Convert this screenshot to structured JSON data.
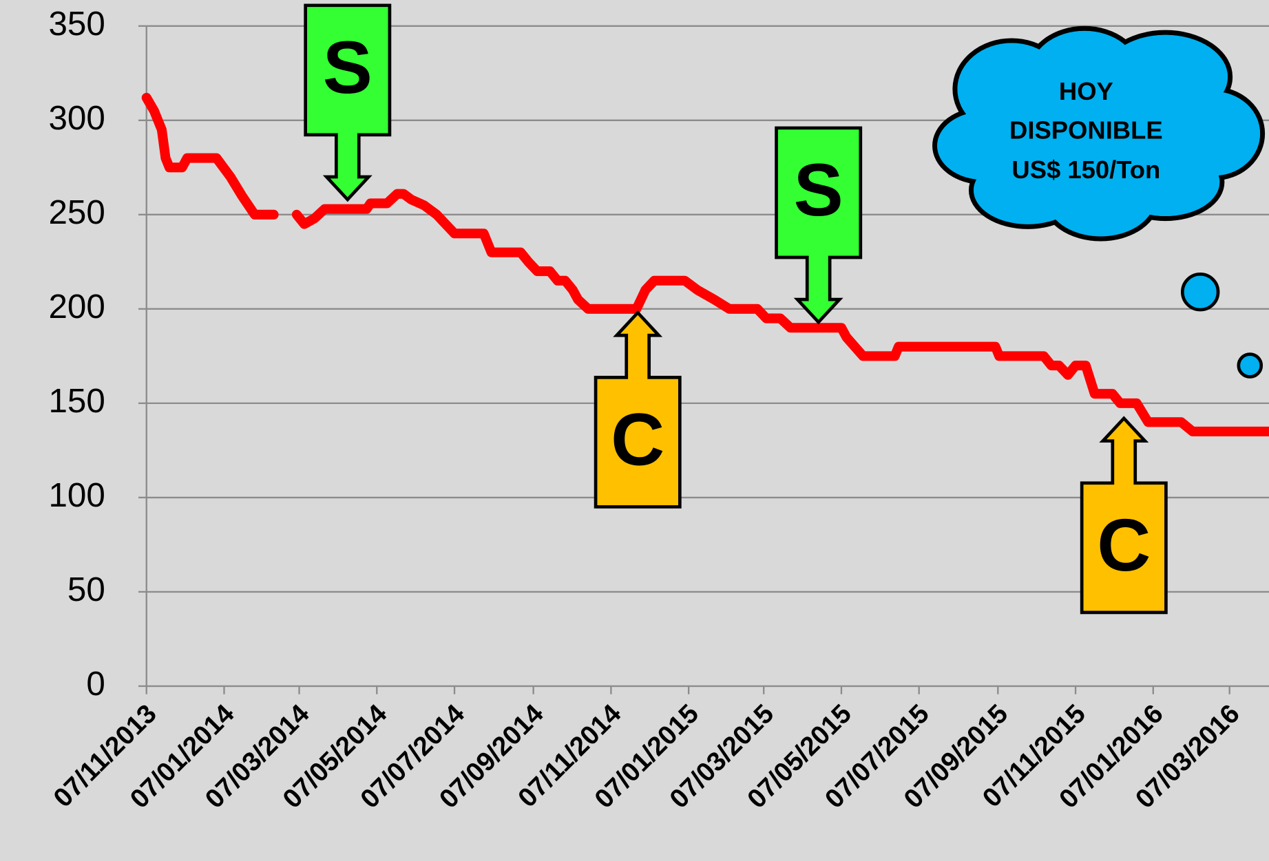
{
  "chart_data": {
    "type": "line",
    "x": [
      "07/11/2013",
      "13/11/2013",
      "19/11/2013",
      "22/11/2013",
      "25/11/2013",
      "05/12/2013",
      "09/12/2013",
      "01/01/2014",
      "12/01/2014",
      "21/01/2014",
      "31/01/2014",
      "15/02/2014",
      "01/03/2014",
      "05/03/2014",
      "11/03/2014",
      "19/03/2014",
      "27/03/2014",
      "29/04/2014",
      "02/05/2014",
      "15/05/2014",
      "23/05/2014",
      "28/05/2014",
      "03/06/2014",
      "13/06/2014",
      "23/06/2014",
      "30/06/2014",
      "07/07/2014",
      "30/07/2014",
      "05/08/2014",
      "28/08/2014",
      "03/09/2014",
      "10/09/2014",
      "20/09/2014",
      "26/09/2014",
      "02/10/2014",
      "08/10/2014",
      "12/10/2014",
      "20/10/2014",
      "27/11/2014",
      "04/12/2014",
      "11/12/2014",
      "04/01/2015",
      "14/01/2015",
      "27/01/2015",
      "08/02/2015",
      "02/03/2015",
      "09/03/2015",
      "20/03/2015",
      "28/03/2015",
      "07/05/2015",
      "11/05/2015",
      "24/05/2015",
      "18/06/2015",
      "21/06/2015",
      "05/09/2015",
      "08/09/2015",
      "13/10/2015",
      "19/10/2015",
      "25/10/2015",
      "01/11/2015",
      "07/11/2015",
      "15/11/2015",
      "22/11/2015",
      "06/12/2015",
      "12/12/2015",
      "25/12/2015",
      "03/01/2016",
      "29/01/2016",
      "07/02/2016",
      "07/04/2016"
    ],
    "series": [
      {
        "color": "#ff0000",
        "values": [
          312,
          305,
          295,
          280,
          275,
          275,
          280,
          280,
          270,
          260,
          250,
          250,
          null,
          250,
          245,
          248,
          253,
          253,
          256,
          256,
          261,
          261,
          258,
          255,
          250,
          245,
          240,
          240,
          230,
          230,
          225,
          220,
          220,
          215,
          215,
          210,
          205,
          200,
          200,
          210,
          215,
          215,
          210,
          205,
          200,
          200,
          195,
          195,
          190,
          190,
          185,
          175,
          175,
          180,
          180,
          175,
          175,
          170,
          170,
          165,
          170,
          170,
          155,
          155,
          150,
          150,
          140,
          140,
          135,
          135
        ]
      }
    ],
    "bubbles": {
      "color": "#00b0f0",
      "x": [
        "13/02/2016",
        "23/03/2016"
      ],
      "values": [
        209,
        170
      ],
      "sizes": [
        22,
        14
      ]
    },
    "xlim": [
      "07/11/2013",
      "07/04/2016"
    ],
    "xticks": [
      "07/11/2013",
      "07/01/2014",
      "07/03/2014",
      "07/05/2014",
      "07/07/2014",
      "07/09/2014",
      "07/11/2014",
      "07/01/2015",
      "07/03/2015",
      "07/05/2015",
      "07/07/2015",
      "07/09/2015",
      "07/11/2015",
      "07/01/2016",
      "07/03/2016"
    ],
    "ylim": [
      0,
      350
    ],
    "yticks": [
      0,
      50,
      100,
      150,
      200,
      250,
      300,
      350
    ],
    "grid": true,
    "annotations": [
      {
        "text": "S",
        "x": "14/04/2014",
        "y": 258,
        "direction": "down",
        "color": "#33ff33"
      },
      {
        "text": "S",
        "x": "19/04/2015",
        "y": 193,
        "direction": "down",
        "color": "#33ff33"
      },
      {
        "text": "C",
        "x": "28/11/2014",
        "y": 198,
        "direction": "up",
        "color": "#ffc000"
      },
      {
        "text": "C",
        "x": "15/12/2015",
        "y": 142,
        "direction": "up",
        "color": "#ffc000"
      }
    ],
    "cloud_text": [
      "HOY",
      "DISPONIBLE",
      "US$ 150/Ton"
    ]
  }
}
